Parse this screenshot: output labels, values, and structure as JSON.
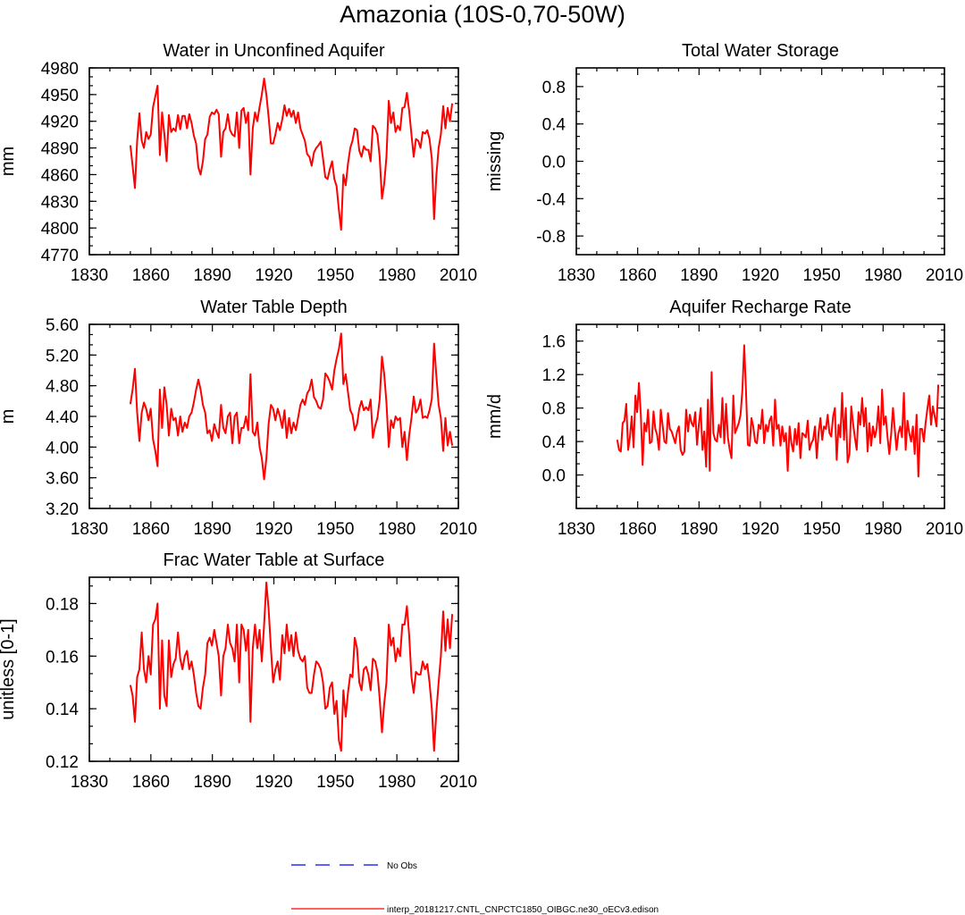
{
  "figure": {
    "title": "Amazonia (10S-0,70-50W)",
    "accent_color": "#ff0000",
    "obs_color": "#0000ff"
  },
  "legend": {
    "entries": [
      {
        "label": "No Obs",
        "color": "#0000ff",
        "style": "dashed"
      },
      {
        "label": "interp_20181217.CNTL_CNPCTC1850_OIBGC.ne30_oECv3.edison",
        "color": "#ff0000",
        "style": "solid"
      }
    ]
  },
  "chart_data": [
    {
      "type": "line",
      "title": "Water in Unconfined Aquifer",
      "xlabel": "",
      "ylabel": "mm",
      "xlim": [
        1830,
        2010
      ],
      "ylim": [
        4770,
        4980
      ],
      "xticks": [
        "1830",
        "1860",
        "1890",
        "1920",
        "1950",
        "1980",
        "2010"
      ],
      "yticks": [
        "4770",
        "4800",
        "4830",
        "4860",
        "4890",
        "4920",
        "4950",
        "4980"
      ],
      "x_start": 1850,
      "series": [
        {
          "color": "#ff0000",
          "values": [
            4893,
            4870,
            4845,
            4898,
            4929,
            4898,
            4890,
            4908,
            4900,
            4905,
            4936,
            4948,
            4960,
            4882,
            4930,
            4906,
            4875,
            4927,
            4908,
            4912,
            4909,
            4927,
            4911,
            4926,
            4926,
            4912,
            4928,
            4918,
            4904,
            4895,
            4868,
            4860,
            4875,
            4900,
            4905,
            4925,
            4930,
            4928,
            4933,
            4928,
            4880,
            4908,
            4912,
            4928,
            4910,
            4905,
            4903,
            4930,
            4890,
            4932,
            4935,
            4918,
            4930,
            4860,
            4912,
            4930,
            4920,
            4936,
            4950,
            4968,
            4950,
            4925,
            4895,
            4895,
            4905,
            4918,
            4910,
            4922,
            4938,
            4926,
            4934,
            4925,
            4932,
            4918,
            4930,
            4912,
            4905,
            4898,
            4883,
            4880,
            4870,
            4885,
            4890,
            4893,
            4897,
            4878,
            4857,
            4855,
            4866,
            4875,
            4855,
            4847,
            4820,
            4798,
            4860,
            4848,
            4872,
            4890,
            4898,
            4912,
            4910,
            4887,
            4880,
            4892,
            4888,
            4888,
            4875,
            4915,
            4912,
            4905,
            4880,
            4833,
            4850,
            4880,
            4943,
            4918,
            4930,
            4908,
            4915,
            4910,
            4935,
            4936,
            4952,
            4932,
            4905,
            4880,
            4900,
            4898,
            4890,
            4908,
            4906,
            4910,
            4900,
            4878,
            4810,
            4860,
            4890,
            4905,
            4937,
            4912,
            4935,
            4920,
            4940
          ]
        }
      ]
    },
    {
      "type": "line",
      "title": "Total Water Storage",
      "xlabel": "",
      "ylabel": "missing",
      "xlim": [
        1830,
        2010
      ],
      "ylim": [
        -1.0,
        1.0
      ],
      "xticks": [
        "1830",
        "1860",
        "1890",
        "1920",
        "1950",
        "1980",
        "2010"
      ],
      "yticks": [
        "-0.8",
        "-0.4",
        "0.0",
        "0.4",
        "0.8"
      ],
      "x_start": 1850,
      "series": []
    },
    {
      "type": "line",
      "title": "Water Table Depth",
      "xlabel": "",
      "ylabel": "m",
      "xlim": [
        1830,
        2010
      ],
      "ylim": [
        3.2,
        5.6
      ],
      "xticks": [
        "1830",
        "1860",
        "1890",
        "1920",
        "1950",
        "1980",
        "2010"
      ],
      "yticks": [
        "3.20",
        "3.60",
        "4.00",
        "4.40",
        "4.80",
        "5.20",
        "5.60"
      ],
      "x_start": 1850,
      "series": [
        {
          "color": "#ff0000",
          "values": [
            4.56,
            4.75,
            5.02,
            4.45,
            4.08,
            4.45,
            4.58,
            4.5,
            4.35,
            4.5,
            4.1,
            3.95,
            3.75,
            4.75,
            4.25,
            4.78,
            4.55,
            4.15,
            4.5,
            4.35,
            4.38,
            4.15,
            4.4,
            4.2,
            4.32,
            4.25,
            4.4,
            4.45,
            4.58,
            4.75,
            4.88,
            4.75,
            4.55,
            4.45,
            4.18,
            4.22,
            4.08,
            4.3,
            4.2,
            4.12,
            4.55,
            4.25,
            4.18,
            4.4,
            4.45,
            4.05,
            4.4,
            4.45,
            4.05,
            4.25,
            4.25,
            4.4,
            4.22,
            4.95,
            4.2,
            4.15,
            4.32,
            4.0,
            3.86,
            3.58,
            3.85,
            4.3,
            4.55,
            4.5,
            4.35,
            4.5,
            4.4,
            4.25,
            4.48,
            4.12,
            4.38,
            4.18,
            4.32,
            4.22,
            4.38,
            4.55,
            4.62,
            4.55,
            4.7,
            4.75,
            4.88,
            4.65,
            4.6,
            4.52,
            4.5,
            4.62,
            4.96,
            4.92,
            4.85,
            4.75,
            5.0,
            5.15,
            5.28,
            5.48,
            4.82,
            4.95,
            4.72,
            4.48,
            4.42,
            4.22,
            4.3,
            4.5,
            4.6,
            4.48,
            4.52,
            4.48,
            4.62,
            4.12,
            4.28,
            4.38,
            4.62,
            5.18,
            4.95,
            4.58,
            4.0,
            4.35,
            4.25,
            4.4,
            4.35,
            4.38,
            4.0,
            4.2,
            3.83,
            4.15,
            4.38,
            4.66,
            4.45,
            4.5,
            4.62,
            4.38,
            4.4,
            4.38,
            4.48,
            4.63,
            5.35,
            4.92,
            4.55,
            4.38,
            3.95,
            4.38,
            4.02,
            4.2,
            4.02
          ]
        }
      ]
    },
    {
      "type": "line",
      "title": "Aquifer Recharge Rate",
      "xlabel": "",
      "ylabel": "mm/d",
      "xlim": [
        1830,
        2010
      ],
      "ylim": [
        -0.4,
        1.8
      ],
      "xticks": [
        "1830",
        "1860",
        "1890",
        "1920",
        "1950",
        "1980",
        "2010"
      ],
      "yticks": [
        "0.0",
        "0.4",
        "0.8",
        "1.2",
        "1.6"
      ],
      "x_start": 1850,
      "series": [
        {
          "color": "#ff0000",
          "values": [
            0.42,
            0.3,
            0.28,
            0.62,
            0.65,
            0.85,
            0.3,
            0.45,
            0.7,
            0.33,
            0.95,
            0.75,
            1.1,
            0.72,
            0.12,
            0.62,
            0.52,
            0.78,
            0.38,
            0.4,
            0.76,
            0.55,
            0.48,
            0.3,
            0.78,
            0.6,
            0.4,
            0.38,
            0.74,
            0.55,
            0.52,
            0.45,
            0.38,
            0.52,
            0.58,
            0.3,
            0.24,
            0.28,
            0.78,
            0.52,
            0.72,
            0.62,
            0.58,
            0.75,
            0.36,
            0.6,
            0.8,
            0.3,
            0.52,
            0.1,
            0.9,
            0.05,
            1.23,
            0.5,
            0.42,
            0.4,
            0.6,
            0.45,
            0.92,
            0.38,
            0.85,
            0.45,
            0.3,
            0.2,
            0.95,
            0.5,
            0.56,
            0.62,
            0.72,
            1.02,
            1.55,
            1.0,
            0.36,
            0.35,
            0.68,
            0.58,
            0.4,
            0.38,
            0.6,
            0.55,
            0.78,
            0.38,
            0.6,
            0.52,
            0.65,
            0.7,
            0.35,
            0.9,
            0.55,
            0.6,
            0.35,
            0.58,
            0.4,
            0.5,
            0.05,
            0.58,
            0.38,
            0.28,
            0.55,
            0.36,
            0.62,
            0.2,
            0.5,
            0.48,
            0.45,
            0.65,
            0.3,
            0.38,
            0.42,
            0.58,
            0.2,
            0.5,
            0.68,
            0.42,
            0.58,
            0.55,
            0.72,
            0.5,
            0.46,
            0.7,
            0.8,
            0.18,
            0.6,
            0.45,
            0.98,
            0.42,
            0.8,
            0.15,
            0.25,
            0.82,
            0.62,
            0.45,
            0.3,
            0.75,
            0.6,
            0.92,
            0.58,
            0.8,
            0.28,
            0.62,
            0.35,
            0.58,
            0.45,
            0.55,
            0.82,
            0.38,
            1.02,
            0.6,
            0.7,
            0.45,
            0.25,
            0.48,
            0.8,
            0.55,
            0.3,
            0.5,
            0.58,
            0.45,
            0.98,
            0.3,
            0.65,
            0.5,
            0.4,
            0.58,
            0.25,
            0.72,
            -0.02,
            0.55,
            0.55,
            0.4,
            0.62,
            0.8,
            0.95,
            0.6,
            0.82,
            0.7,
            0.58,
            1.08
          ]
        }
      ]
    },
    {
      "type": "line",
      "title": "Frac Water Table at Surface",
      "xlabel": "",
      "ylabel": "unitless [0-1]",
      "xlim": [
        1830,
        2010
      ],
      "ylim": [
        0.12,
        0.19
      ],
      "xticks": [
        "1830",
        "1860",
        "1890",
        "1920",
        "1950",
        "1980",
        "2010"
      ],
      "yticks": [
        "0.12",
        "0.14",
        "0.16",
        "0.18"
      ],
      "x_start": 1850,
      "series": [
        {
          "color": "#ff0000",
          "values": [
            0.149,
            0.145,
            0.135,
            0.152,
            0.155,
            0.169,
            0.155,
            0.15,
            0.16,
            0.153,
            0.172,
            0.174,
            0.18,
            0.14,
            0.166,
            0.145,
            0.141,
            0.166,
            0.152,
            0.157,
            0.159,
            0.169,
            0.159,
            0.155,
            0.16,
            0.162,
            0.155,
            0.158,
            0.153,
            0.146,
            0.141,
            0.14,
            0.148,
            0.153,
            0.165,
            0.167,
            0.164,
            0.17,
            0.165,
            0.16,
            0.145,
            0.16,
            0.163,
            0.172,
            0.165,
            0.163,
            0.158,
            0.172,
            0.15,
            0.172,
            0.17,
            0.162,
            0.17,
            0.135,
            0.163,
            0.172,
            0.163,
            0.17,
            0.158,
            0.172,
            0.188,
            0.178,
            0.163,
            0.15,
            0.155,
            0.158,
            0.151,
            0.168,
            0.161,
            0.172,
            0.162,
            0.168,
            0.16,
            0.169,
            0.162,
            0.159,
            0.158,
            0.16,
            0.148,
            0.146,
            0.146,
            0.153,
            0.158,
            0.157,
            0.155,
            0.15,
            0.14,
            0.141,
            0.148,
            0.15,
            0.138,
            0.143,
            0.128,
            0.124,
            0.147,
            0.137,
            0.146,
            0.153,
            0.152,
            0.167,
            0.163,
            0.15,
            0.147,
            0.155,
            0.156,
            0.153,
            0.147,
            0.159,
            0.158,
            0.154,
            0.144,
            0.131,
            0.142,
            0.15,
            0.172,
            0.164,
            0.167,
            0.158,
            0.163,
            0.16,
            0.172,
            0.172,
            0.179,
            0.168,
            0.152,
            0.146,
            0.154,
            0.153,
            0.153,
            0.158,
            0.155,
            0.157,
            0.15,
            0.14,
            0.124,
            0.139,
            0.15,
            0.16,
            0.177,
            0.162,
            0.174,
            0.163,
            0.176
          ]
        }
      ]
    }
  ]
}
